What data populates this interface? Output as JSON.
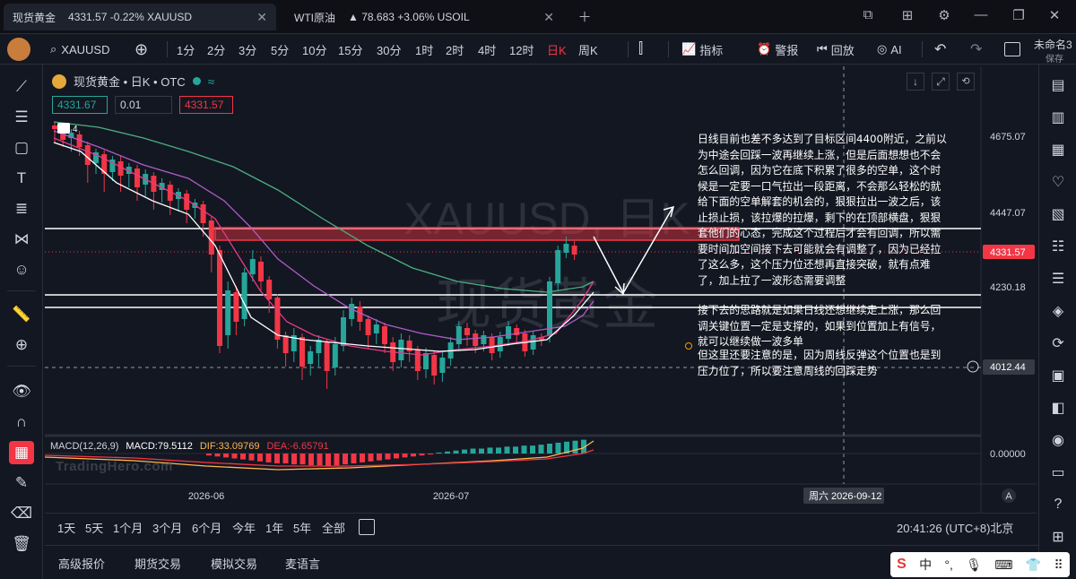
{
  "tabs": [
    {
      "label": "现货黄金",
      "price": "4331.57 -0.22% XAUUSD"
    },
    {
      "label": "WTI原油",
      "price": "▲  78.683 +3.06% USOIL"
    }
  ],
  "toolbar": {
    "symbol": "XAUUSD",
    "intervals": [
      "1分",
      "2分",
      "3分",
      "5分",
      "10分",
      "15分",
      "30分",
      "1时",
      "2时",
      "4时",
      "12时",
      "日K",
      "周K"
    ],
    "active_interval": "日K",
    "indicators_label": "指标",
    "alert_label": "警报",
    "replay_label": "回放",
    "ai_label": "AI",
    "layout_name": "未命名3",
    "save_label": "保存"
  },
  "chart": {
    "legend_title": "现货黄金 • 日K • OTC",
    "bid": "4331.67",
    "spread": "0.01",
    "ask": "4331.57",
    "watermark_line1": "XAUUSD, 日K",
    "watermark_line2": "现货黄金",
    "price_axis": [
      "4675.07",
      "4447.07",
      "4230.18",
      "0.00000"
    ],
    "current_price": "4331.57",
    "crosshair_price": "4012.44",
    "time_axis": [
      "2026-06",
      "2026-07"
    ],
    "crosshair_date": "周六  2026-09-12",
    "axis_mode": "A",
    "marker_label": "4",
    "brand": "TradingHero.com"
  },
  "macd": {
    "label": "MACD(12,26,9)",
    "macd": "MACD:79.5112",
    "dif": "DIF:33.09769",
    "dea": "DEA:-6.65791"
  },
  "annotation": {
    "para1": "日线目前也差不多达到了目标区间4400附近，之前以为中途会回踩一波再继续上涨，但是后面想想也不会怎么回调，因为它在底下积累了很多的空单，这个时候是一定要一口气拉出一段距离，不会那么轻松的就给下面的空单解套的机会的，狠狠拉出一波之后，该止损止损，该拉爆的拉爆，剩下的在顶部横盘，狠狠套他们的心态，完成这个过程后才会有回调，所以需要时间加空间接下去可能就会有调整了，因为已经拉了这么多，这个压力位还想再直接突破，就有点难了，加上拉了一波形态需要调整",
    "para2": "接下去的思路就是如果日线还想继续走上涨，那么回调关键位置一定是支撑的，如果到位置加上有信号，就可以继续做一波多单",
    "para3": "但这里还要注意的是，因为周线反弹这个位置也是到压力位了，所以要注意周线的回踩走势"
  },
  "range_bar": {
    "ranges": [
      "1天",
      "5天",
      "1个月",
      "3个月",
      "6个月",
      "今年",
      "1年",
      "5年",
      "全部"
    ],
    "clock": "20:41:26 (UTC+8)北京"
  },
  "bottom_tabs": [
    "高级报价",
    "期货交易",
    "模拟交易",
    "麦语言"
  ],
  "ime": {
    "lang": "中",
    "punct": "°,"
  },
  "colors": {
    "up": "#26a69a",
    "down": "#f23645",
    "zone": "#f23645",
    "ma1": "#4caf80",
    "ma2": "#b05cc8",
    "ma3": "#e53988",
    "ma4": "#ffffff"
  }
}
